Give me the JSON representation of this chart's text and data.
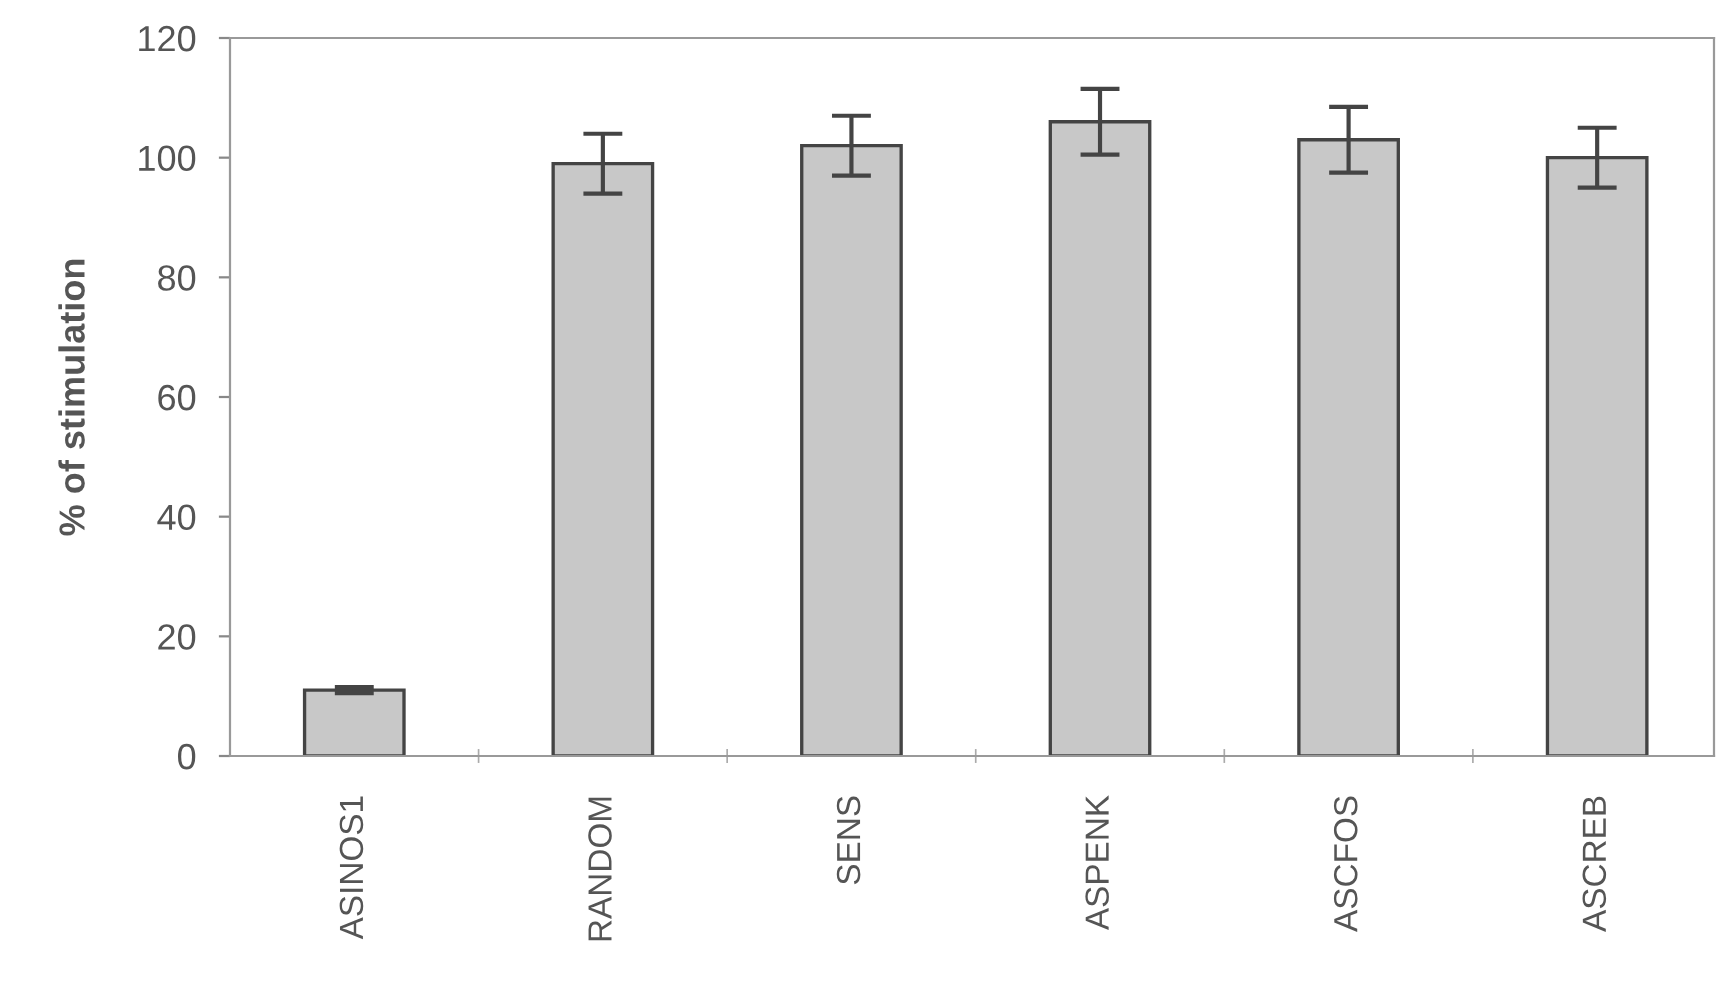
{
  "chart_data": {
    "type": "bar",
    "ylabel": "% of stimulation",
    "categories": [
      "ASINOS1",
      "RANDOM",
      "SENS",
      "ASPENK",
      "ASCFOS",
      "ASCREB"
    ],
    "values": [
      11,
      99,
      102,
      106,
      103,
      100
    ],
    "errors": [
      0.5,
      5,
      5,
      5.5,
      5.5,
      5
    ],
    "color": "#c8c8c8",
    "ylim": [
      0,
      120
    ],
    "yticks": [
      0,
      20,
      40,
      60,
      80,
      100,
      120
    ],
    "grid": false,
    "legend": false
  }
}
